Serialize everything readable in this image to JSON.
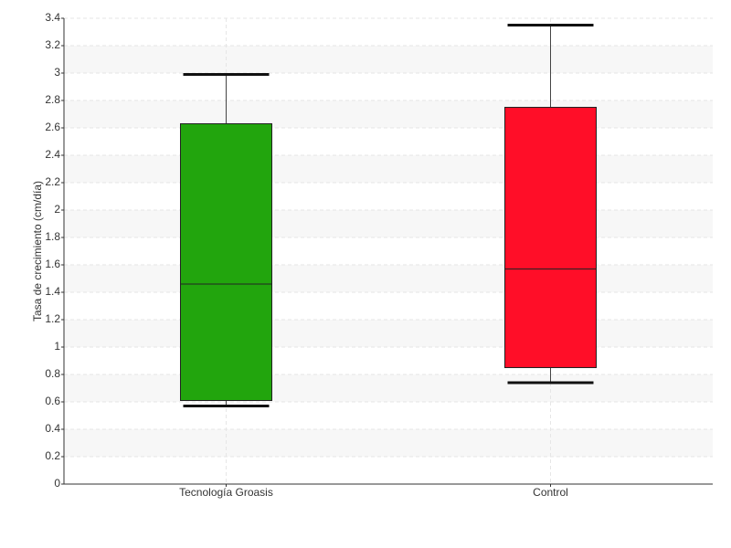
{
  "chart_data": {
    "type": "box",
    "y_label": "Tasa de crecimiento (cm/día)",
    "categories": [
      "Tecnología Groasis",
      "Control"
    ],
    "colors": [
      "#22a50d",
      "#ff0e28"
    ],
    "boxes": [
      {
        "min": 0.57,
        "q1": 0.61,
        "median": 1.46,
        "q3": 2.63,
        "max": 2.99
      },
      {
        "min": 0.74,
        "q1": 0.85,
        "median": 1.57,
        "q3": 2.75,
        "max": 3.35
      }
    ],
    "ylim": [
      0,
      3.4
    ],
    "yticks": [
      0,
      0.2,
      0.4,
      0.6,
      0.8,
      1,
      1.2,
      1.4,
      1.6,
      1.8,
      2,
      2.2,
      2.4,
      2.6,
      2.8,
      3,
      3.2,
      3.4
    ],
    "grid": true
  }
}
